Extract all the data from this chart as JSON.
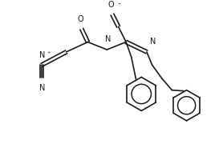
{
  "bg_color": "#ffffff",
  "line_color": "#1a1a1a",
  "lw": 1.2,
  "fs": 7.0,
  "figsize": [
    2.78,
    1.85
  ],
  "dpi": 100,
  "xlim": [
    0,
    278
  ],
  "ylim": [
    0,
    185
  ]
}
